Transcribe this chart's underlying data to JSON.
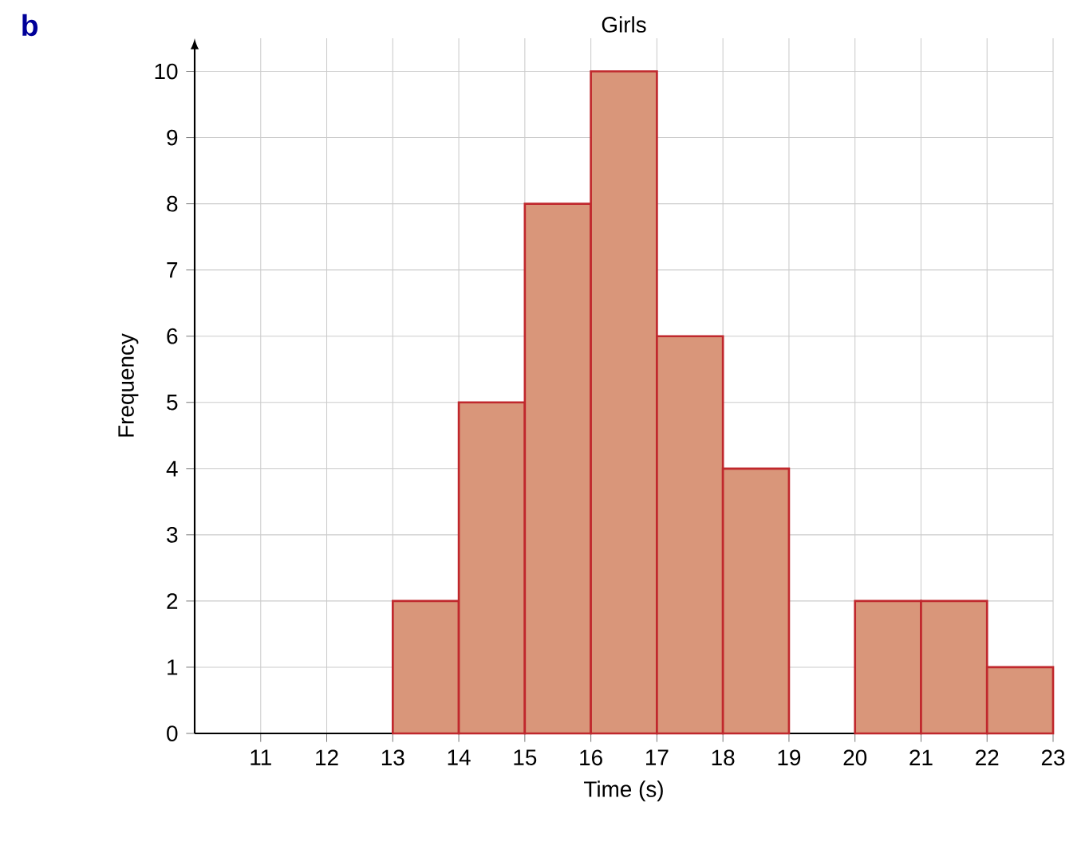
{
  "chart_data": {
    "type": "histogram",
    "title": "Girls",
    "xlabel": "Time (s)",
    "ylabel": "Frequency",
    "annotations": [
      "b"
    ],
    "bins": [
      13,
      14,
      15,
      16,
      17,
      18,
      19,
      20,
      21,
      22,
      23
    ],
    "values": [
      2,
      5,
      8,
      10,
      6,
      4,
      0,
      2,
      2,
      1
    ],
    "color": "#d9967a",
    "xlim": [
      10,
      23
    ],
    "xticks": [
      11,
      12,
      13,
      14,
      15,
      16,
      17,
      18,
      19,
      20,
      21,
      22,
      23
    ],
    "ylim": [
      0,
      10.5
    ],
    "yticks": [
      0,
      1,
      2,
      3,
      4,
      5,
      6,
      7,
      8,
      9,
      10
    ],
    "grid": true
  }
}
